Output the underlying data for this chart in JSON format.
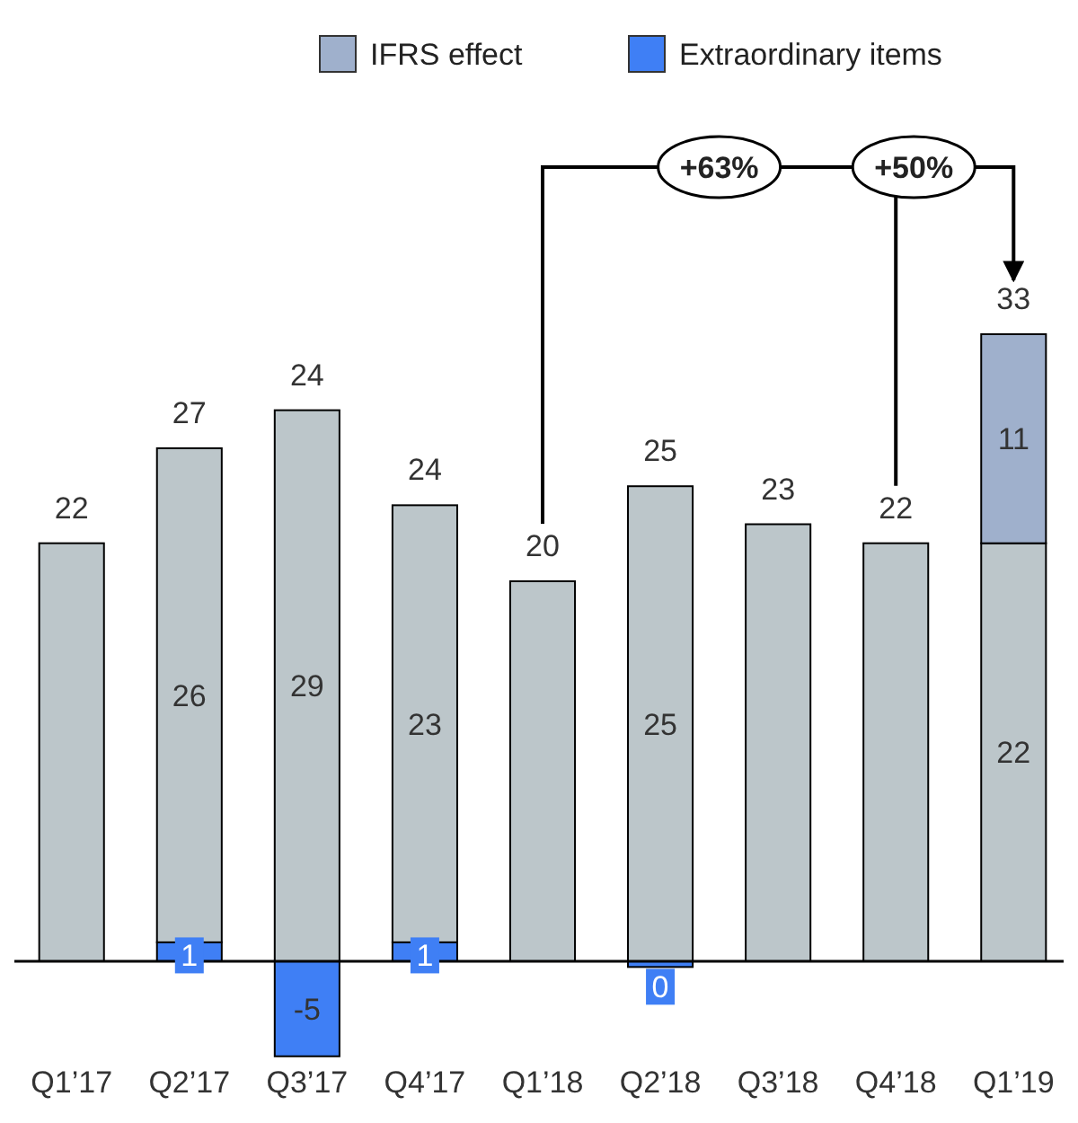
{
  "chart_data": {
    "type": "bar",
    "stacked": true,
    "categories": [
      "Q1’17",
      "Q2’17",
      "Q3’17",
      "Q4’17",
      "Q1’18",
      "Q2’18",
      "Q3’18",
      "Q4’18",
      "Q1’19"
    ],
    "series": [
      {
        "name": "Extraordinary items",
        "color": "#3f7ff5",
        "values": [
          null,
          1,
          -5,
          1,
          null,
          -0.3,
          null,
          null,
          null
        ],
        "value_labels": [
          null,
          "1",
          "-5",
          "1",
          null,
          "0",
          null,
          null,
          null
        ]
      },
      {
        "color": "#bcc6ca",
        "values": [
          22,
          26,
          29,
          23,
          20,
          25,
          23,
          22,
          22
        ],
        "value_labels": [
          null,
          "26",
          "29",
          "23",
          null,
          "25",
          null,
          null,
          "22"
        ]
      },
      {
        "name": "IFRS effect",
        "color": "#9fb0cc",
        "values": [
          null,
          null,
          null,
          null,
          null,
          null,
          null,
          null,
          11
        ],
        "value_labels": [
          null,
          null,
          null,
          null,
          null,
          null,
          null,
          null,
          "11"
        ]
      }
    ],
    "totals": [
      "22",
      "27",
      "24",
      "24",
      "20",
      "25",
      "23",
      "22",
      "33"
    ],
    "annotations": [
      "+63%",
      "+50%"
    ],
    "legend": "top right"
  }
}
